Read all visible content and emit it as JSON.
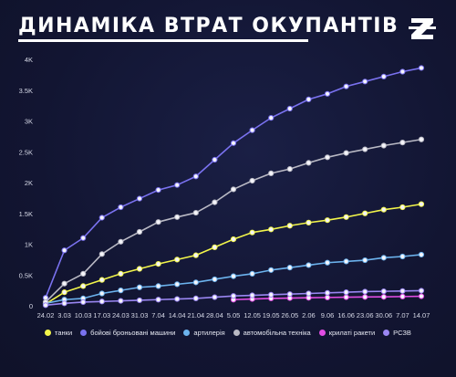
{
  "header": {
    "title": "ДИНАМІКА ВТРАТ ОКУПАНТІВ",
    "logo_icon": "z-logo-icon"
  },
  "chart_data": {
    "type": "line",
    "title": "ДИНАМІКА ВТРАТ ОКУПАНТІВ",
    "xlabel": "",
    "ylabel": "",
    "ylim": [
      0,
      4000
    ],
    "yticks": [
      0,
      500,
      1000,
      1500,
      2000,
      2500,
      3000,
      3500,
      4000
    ],
    "yticklabels": [
      "0",
      "0.5K",
      "1K",
      "1.5K",
      "2K",
      "2.5K",
      "3K",
      "3.5K",
      "4K"
    ],
    "grid": false,
    "legend": "bottom",
    "categories": [
      "24.02",
      "3.03",
      "10.03",
      "17.03",
      "24.03",
      "31.03",
      "7.04",
      "14.04",
      "21.04",
      "28.04",
      "5.05",
      "12.05",
      "19.05",
      "26.05",
      "2.06",
      "9.06",
      "16.06",
      "23.06",
      "30.06",
      "7.07",
      "14.07"
    ],
    "series": [
      {
        "name": "танки",
        "color": "#f2f54a",
        "values": [
          30,
          220,
          320,
          420,
          520,
          600,
          680,
          750,
          820,
          950,
          1080,
          1190,
          1240,
          1300,
          1350,
          1390,
          1440,
          1500,
          1560,
          1600,
          1650
        ]
      },
      {
        "name": "бойові броньовані машини",
        "color": "#7a72f0",
        "values": [
          130,
          900,
          1100,
          1430,
          1600,
          1740,
          1880,
          1960,
          2100,
          2370,
          2640,
          2850,
          3050,
          3200,
          3350,
          3440,
          3560,
          3640,
          3720,
          3800,
          3860
        ]
      },
      {
        "name": "артилерія",
        "color": "#6cb3ee",
        "values": [
          40,
          100,
          120,
          200,
          250,
          300,
          320,
          350,
          380,
          430,
          480,
          520,
          580,
          620,
          660,
          700,
          720,
          740,
          780,
          800,
          830
        ]
      },
      {
        "name": "автомобільна техніка",
        "color": "#b9b9c4",
        "values": [
          60,
          360,
          520,
          840,
          1040,
          1200,
          1360,
          1440,
          1510,
          1680,
          1890,
          2030,
          2150,
          2220,
          2320,
          2410,
          2480,
          2540,
          2600,
          2650,
          2700
        ]
      },
      {
        "name": "крилаті ракети",
        "color": "#e24de4",
        "start": 10,
        "values": [
          null,
          null,
          null,
          null,
          null,
          null,
          null,
          null,
          null,
          null,
          100,
          110,
          120,
          125,
          130,
          135,
          140,
          143,
          145,
          150,
          155
        ]
      },
      {
        "name": "РСЗВ",
        "color": "#9a86f2",
        "values": [
          10,
          40,
          60,
          70,
          80,
          90,
          100,
          110,
          120,
          140,
          160,
          170,
          180,
          190,
          200,
          210,
          220,
          230,
          235,
          240,
          245
        ]
      }
    ]
  }
}
